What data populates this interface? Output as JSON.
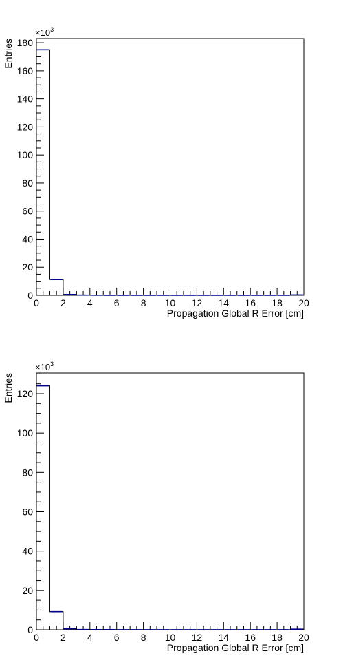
{
  "chart_data": [
    {
      "type": "histogram",
      "xlabel": "Propagation Global R Error [cm]",
      "ylabel": "Entries",
      "multiplier": "×10",
      "multiplier_exp": "3",
      "xlim": [
        0,
        20
      ],
      "ylim": [
        0,
        183
      ],
      "x_ticks": [
        0,
        2,
        4,
        6,
        8,
        10,
        12,
        14,
        16,
        18,
        20
      ],
      "x_tick_labels": [
        "0",
        "2",
        "4",
        "6",
        "8",
        "10",
        "12",
        "14",
        "16",
        "18",
        "20"
      ],
      "y_ticks": [
        0,
        20,
        40,
        60,
        80,
        100,
        120,
        140,
        160,
        180
      ],
      "y_tick_labels": [
        "0",
        "20",
        "40",
        "60",
        "80",
        "100",
        "120",
        "140",
        "160",
        "180"
      ],
      "bin_edges": [
        0,
        1,
        2,
        3,
        4,
        5,
        6,
        7,
        8,
        9,
        10,
        11,
        12,
        13,
        14,
        15,
        16,
        17,
        18,
        19,
        20
      ],
      "values": [
        175,
        11.2,
        0.6,
        0.15,
        0.1,
        0.05,
        0.05,
        0.03,
        0.03,
        0.02,
        0.02,
        0.02,
        0.01,
        0.01,
        0.01,
        0.01,
        0.01,
        0.01,
        0.01,
        0.3
      ],
      "line_color": "#000000",
      "error_color": "#00008b"
    },
    {
      "type": "histogram",
      "xlabel": "Propagation Global R Error [cm]",
      "ylabel": "Entries",
      "multiplier": "×10",
      "multiplier_exp": "3",
      "xlim": [
        0,
        20
      ],
      "ylim": [
        0,
        130.5
      ],
      "x_ticks": [
        0,
        2,
        4,
        6,
        8,
        10,
        12,
        14,
        16,
        18,
        20
      ],
      "x_tick_labels": [
        "0",
        "2",
        "4",
        "6",
        "8",
        "10",
        "12",
        "14",
        "16",
        "18",
        "20"
      ],
      "y_ticks": [
        0,
        20,
        40,
        60,
        80,
        100,
        120
      ],
      "y_tick_labels": [
        "0",
        "20",
        "40",
        "60",
        "80",
        "100",
        "120"
      ],
      "bin_edges": [
        0,
        1,
        2,
        3,
        4,
        5,
        6,
        7,
        8,
        9,
        10,
        11,
        12,
        13,
        14,
        15,
        16,
        17,
        18,
        19,
        20
      ],
      "values": [
        124,
        9.2,
        0.5,
        0.12,
        0.08,
        0.05,
        0.04,
        0.03,
        0.02,
        0.02,
        0.02,
        0.01,
        0.01,
        0.01,
        0.01,
        0.01,
        0.01,
        0.01,
        0.01,
        0.3
      ],
      "line_color": "#000000",
      "error_color": "#00008b"
    }
  ]
}
